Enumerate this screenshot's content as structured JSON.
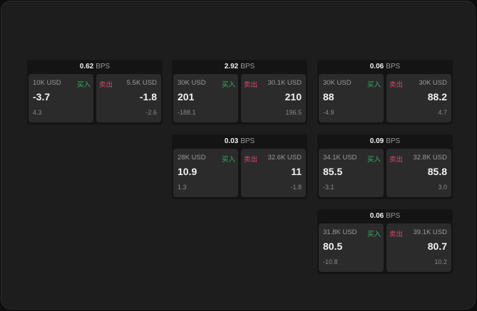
{
  "colors": {
    "buy": "#2fb36a",
    "sell": "#e0446a"
  },
  "unit": "BPS",
  "buy_label": "买入",
  "sell_label": "卖出",
  "cards": [
    {
      "spread": "0.62",
      "buy": {
        "size": "10K USD",
        "price": "-3.7",
        "change": "4.3"
      },
      "sell": {
        "size": "5.5K USD",
        "price": "-1.8",
        "change": "-2.6"
      }
    },
    {
      "spread": "2.92",
      "buy": {
        "size": "30K USD",
        "price": "201",
        "change": "-188.1"
      },
      "sell": {
        "size": "30.1K USD",
        "price": "210",
        "change": "196.5"
      }
    },
    {
      "spread": "0.06",
      "buy": {
        "size": "30K USD",
        "price": "88",
        "change": "-4.9"
      },
      "sell": {
        "size": "30K USD",
        "price": "88.2",
        "change": "4.7"
      }
    },
    {
      "spread": "0.03",
      "buy": {
        "size": "28K USD",
        "price": "10.9",
        "change": "1.3"
      },
      "sell": {
        "size": "32.6K USD",
        "price": "11",
        "change": "-1.8"
      }
    },
    {
      "spread": "0.09",
      "buy": {
        "size": "34.1K USD",
        "price": "85.5",
        "change": "-3.1"
      },
      "sell": {
        "size": "32.8K USD",
        "price": "85.8",
        "change": "3.0"
      }
    },
    {
      "spread": "0.06",
      "buy": {
        "size": "31.8K USD",
        "price": "80.5",
        "change": "-10.8"
      },
      "sell": {
        "size": "39.1K USD",
        "price": "80.7",
        "change": "10.2"
      }
    }
  ]
}
